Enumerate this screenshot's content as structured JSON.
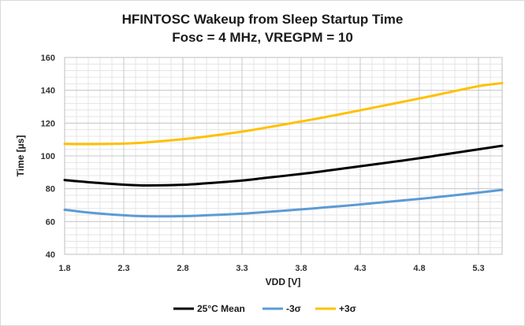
{
  "chart_data": {
    "type": "line",
    "title": "HFINTOSC Wakeup from Sleep Startup Time",
    "subtitle": "Fosc = 4 MHz, VREGPM = 10",
    "xlabel": "VDD [V]",
    "ylabel": "Time [µs]",
    "xlim": [
      1.8,
      5.5
    ],
    "ylim": [
      40,
      160
    ],
    "xticks": [
      "1.8",
      "2.3",
      "2.8",
      "3.3",
      "3.8",
      "4.3",
      "4.8",
      "5.3"
    ],
    "yticks": [
      "40",
      "60",
      "80",
      "100",
      "120",
      "140",
      "160"
    ],
    "grid": true,
    "legend_position": "bottom",
    "x": [
      1.8,
      2.0,
      2.3,
      2.5,
      2.8,
      3.0,
      3.3,
      3.5,
      3.8,
      4.0,
      4.3,
      4.5,
      4.8,
      5.0,
      5.3,
      5.5
    ],
    "series": [
      {
        "name": "25°C Mean",
        "color": "#000000",
        "values": [
          85.3,
          84.0,
          82.5,
          82.0,
          82.4,
          83.3,
          85.0,
          86.6,
          89.0,
          90.8,
          93.7,
          95.6,
          98.6,
          100.8,
          104.0,
          106.2
        ]
      },
      {
        "name": "-3σ",
        "color": "#5b9bd5",
        "values": [
          67.2,
          65.5,
          63.8,
          63.2,
          63.3,
          63.8,
          64.8,
          65.8,
          67.4,
          68.6,
          70.4,
          71.8,
          73.8,
          75.3,
          77.6,
          79.3
        ]
      },
      {
        "name": "+3σ",
        "color": "#ffc000",
        "values": [
          107.3,
          107.2,
          107.5,
          108.3,
          110.2,
          111.8,
          114.8,
          117.2,
          121.0,
          123.6,
          127.8,
          130.7,
          135.0,
          138.0,
          142.5,
          144.4
        ]
      }
    ]
  }
}
